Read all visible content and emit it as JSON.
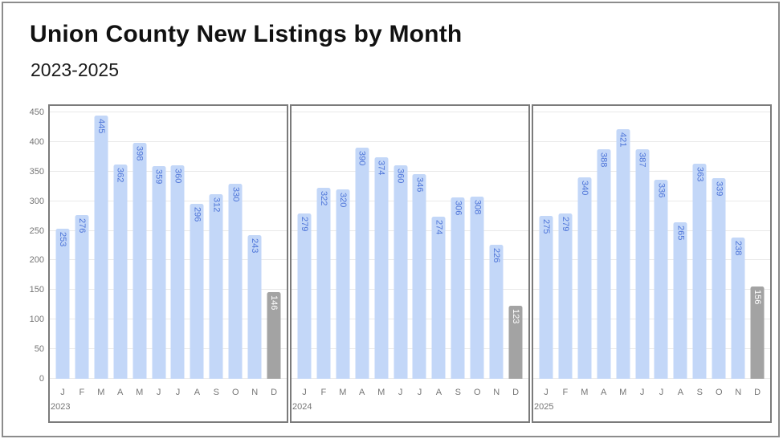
{
  "page": {
    "title": "Union County New Listings by Month",
    "subtitle": "2023-2025"
  },
  "colors": {
    "bar": "#c3d7f8",
    "bar_label": "#4d74d8",
    "muted_bar": "#a3a3a3",
    "muted_bar_label": "#ffffff",
    "grid": "#e9e9e9",
    "axis_text": "#757575",
    "panel_border": "#7b7b7b",
    "outer_border": "#8c8c8c"
  },
  "chart_data": {
    "type": "bar",
    "title": "Union County New Listings by Month",
    "subtitle": "2023-2025",
    "xlabel": "",
    "ylabel": "",
    "ylim": [
      0,
      450
    ],
    "yticks": [
      0,
      50,
      100,
      150,
      200,
      250,
      300,
      350,
      400,
      450
    ],
    "grid": true,
    "legend": "none",
    "month_labels": [
      "J",
      "F",
      "M",
      "A",
      "M",
      "J",
      "J",
      "A",
      "S",
      "O",
      "N",
      "D"
    ],
    "note": "December bar in each panel is shown in gray (partial/muted month)",
    "panels": [
      {
        "year": "2023",
        "values": [
          253,
          276,
          445,
          362,
          398,
          359,
          360,
          296,
          312,
          330,
          243,
          146
        ],
        "muted_index": 11
      },
      {
        "year": "2024",
        "values": [
          279,
          322,
          320,
          390,
          374,
          360,
          346,
          274,
          306,
          308,
          226,
          123
        ],
        "muted_index": 11
      },
      {
        "year": "2025",
        "values": [
          275,
          279,
          340,
          388,
          421,
          387,
          336,
          265,
          363,
          339,
          238,
          156
        ],
        "muted_index": 11
      }
    ]
  }
}
